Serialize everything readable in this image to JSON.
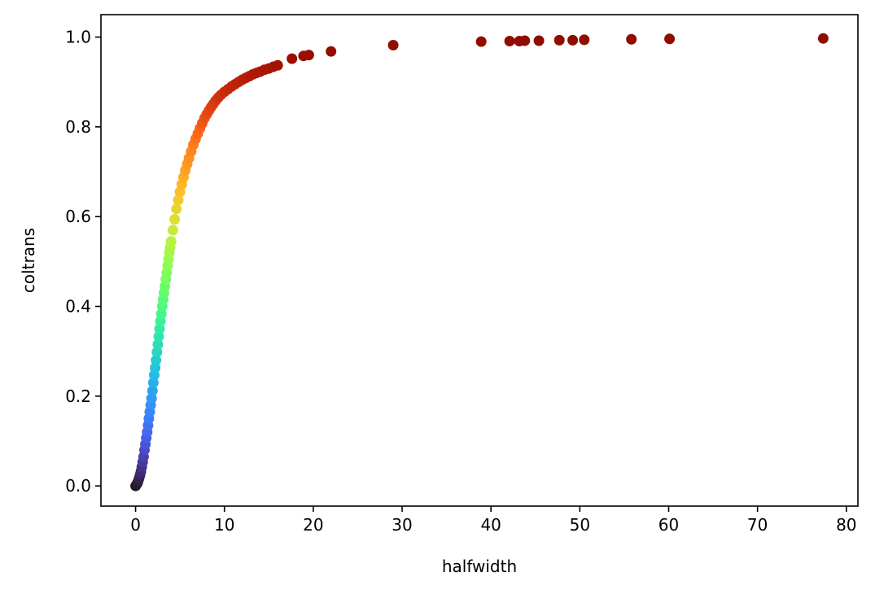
{
  "chart_data": {
    "type": "scatter",
    "title": "",
    "xlabel": "halfwidth",
    "ylabel": "coltrans",
    "xlim": [
      -3.9,
      81.3
    ],
    "ylim": [
      -0.045,
      1.05
    ],
    "xticks": [
      0,
      10,
      20,
      30,
      40,
      50,
      60,
      70,
      80
    ],
    "xtick_labels": [
      "0",
      "10",
      "20",
      "30",
      "40",
      "50",
      "60",
      "70",
      "80"
    ],
    "yticks": [
      0.0,
      0.2,
      0.4,
      0.6,
      0.8,
      1.0
    ],
    "ytick_labels": [
      "0.0",
      "0.2",
      "0.4",
      "0.6",
      "0.8",
      "1.0"
    ],
    "grid": false,
    "colormap": "turbo",
    "color_encoding": "coltrans",
    "point_color_range": [
      0,
      1
    ],
    "curve_points": [
      [
        0.0,
        0.0
      ],
      [
        0.1,
        0.003
      ],
      [
        0.2,
        0.006
      ],
      [
        0.3,
        0.011
      ],
      [
        0.4,
        0.017
      ],
      [
        0.5,
        0.024
      ],
      [
        0.6,
        0.032
      ],
      [
        0.7,
        0.042
      ],
      [
        0.8,
        0.053
      ],
      [
        0.9,
        0.065
      ],
      [
        1.0,
        0.08
      ],
      [
        1.1,
        0.093
      ],
      [
        1.2,
        0.107
      ],
      [
        1.3,
        0.12
      ],
      [
        1.4,
        0.135
      ],
      [
        1.5,
        0.15
      ],
      [
        1.6,
        0.165
      ],
      [
        1.7,
        0.18
      ],
      [
        1.8,
        0.195
      ],
      [
        1.9,
        0.212
      ],
      [
        2.0,
        0.23
      ],
      [
        2.1,
        0.247
      ],
      [
        2.2,
        0.263
      ],
      [
        2.3,
        0.28
      ],
      [
        2.4,
        0.298
      ],
      [
        2.5,
        0.315
      ],
      [
        2.6,
        0.333
      ],
      [
        2.7,
        0.35
      ],
      [
        2.8,
        0.367
      ],
      [
        2.9,
        0.383
      ],
      [
        3.0,
        0.4
      ],
      [
        3.1,
        0.415
      ],
      [
        3.2,
        0.43
      ],
      [
        3.3,
        0.445
      ],
      [
        3.4,
        0.46
      ],
      [
        3.5,
        0.475
      ],
      [
        3.6,
        0.49
      ],
      [
        3.7,
        0.505
      ],
      [
        3.8,
        0.52
      ],
      [
        3.9,
        0.532
      ],
      [
        4.0,
        0.545
      ],
      [
        4.2,
        0.57
      ],
      [
        4.4,
        0.594
      ],
      [
        4.6,
        0.617
      ],
      [
        4.8,
        0.637
      ],
      [
        5.0,
        0.655
      ],
      [
        5.2,
        0.672
      ],
      [
        5.4,
        0.688
      ],
      [
        5.6,
        0.703
      ],
      [
        5.8,
        0.717
      ],
      [
        6.0,
        0.73
      ],
      [
        6.25,
        0.745
      ],
      [
        6.5,
        0.76
      ],
      [
        6.75,
        0.773
      ],
      [
        7.0,
        0.785
      ],
      [
        7.25,
        0.797
      ],
      [
        7.5,
        0.808
      ],
      [
        7.75,
        0.819
      ],
      [
        8.0,
        0.828
      ],
      [
        8.25,
        0.836
      ],
      [
        8.5,
        0.844
      ],
      [
        8.75,
        0.851
      ],
      [
        9.0,
        0.858
      ],
      [
        9.3,
        0.865
      ],
      [
        9.6,
        0.871
      ],
      [
        10.0,
        0.878
      ],
      [
        10.4,
        0.884
      ],
      [
        10.8,
        0.89
      ],
      [
        11.2,
        0.895
      ],
      [
        11.6,
        0.9
      ],
      [
        12.0,
        0.905
      ],
      [
        12.4,
        0.909
      ],
      [
        12.8,
        0.913
      ],
      [
        13.2,
        0.917
      ],
      [
        13.6,
        0.92
      ],
      [
        14.0,
        0.923
      ],
      [
        14.5,
        0.927
      ],
      [
        15.0,
        0.93
      ],
      [
        15.5,
        0.934
      ],
      [
        16.0,
        0.937
      ]
    ],
    "outlier_points": [
      [
        17.6,
        0.952
      ],
      [
        18.9,
        0.958
      ],
      [
        19.5,
        0.96
      ],
      [
        22.0,
        0.968
      ],
      [
        29.0,
        0.982
      ],
      [
        38.9,
        0.99
      ],
      [
        42.1,
        0.991
      ],
      [
        43.2,
        0.991
      ],
      [
        43.8,
        0.992
      ],
      [
        45.4,
        0.992
      ],
      [
        47.7,
        0.993
      ],
      [
        49.2,
        0.993
      ],
      [
        50.5,
        0.994
      ],
      [
        55.8,
        0.995
      ],
      [
        60.1,
        0.996
      ],
      [
        77.4,
        0.997
      ]
    ]
  }
}
